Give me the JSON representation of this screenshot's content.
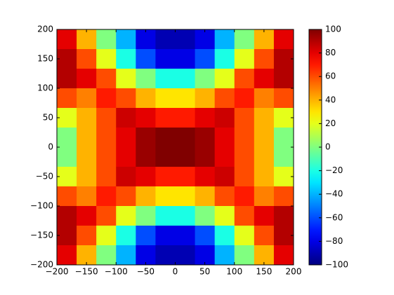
{
  "chart_data": {
    "type": "heatmap",
    "z": [
      [
        80,
        40,
        0,
        -40,
        -80,
        -90,
        -90,
        -80,
        -40,
        0,
        40,
        80
      ],
      [
        90,
        60,
        20,
        -20,
        -60,
        -80,
        -80,
        -60,
        -20,
        20,
        60,
        90
      ],
      [
        90,
        80,
        60,
        20,
        0,
        -20,
        -20,
        0,
        20,
        60,
        80,
        90
      ],
      [
        60,
        50,
        70,
        60,
        40,
        30,
        30,
        40,
        60,
        70,
        50,
        60
      ],
      [
        20,
        40,
        60,
        85,
        80,
        70,
        70,
        80,
        85,
        60,
        40,
        20
      ],
      [
        0,
        40,
        60,
        80,
        95,
        100,
        100,
        95,
        80,
        60,
        40,
        0
      ],
      [
        0,
        40,
        60,
        80,
        95,
        100,
        100,
        95,
        80,
        60,
        40,
        0
      ],
      [
        20,
        40,
        60,
        85,
        80,
        70,
        70,
        80,
        85,
        60,
        40,
        20
      ],
      [
        60,
        50,
        70,
        60,
        40,
        30,
        30,
        40,
        60,
        70,
        50,
        60
      ],
      [
        90,
        80,
        60,
        20,
        0,
        -20,
        -20,
        0,
        20,
        60,
        80,
        90
      ],
      [
        90,
        60,
        20,
        -20,
        -60,
        -80,
        -80,
        -60,
        -20,
        20,
        60,
        90
      ],
      [
        80,
        40,
        0,
        -40,
        -80,
        -90,
        -90,
        -80,
        -40,
        0,
        40,
        80
      ]
    ],
    "colormap": "jet",
    "xlim": [
      -200,
      200
    ],
    "ylim": [
      -200,
      200
    ],
    "xticks": [
      {
        "value": -200,
        "label": "−200"
      },
      {
        "value": -150,
        "label": "−150"
      },
      {
        "value": -100,
        "label": "−100"
      },
      {
        "value": -50,
        "label": "−50"
      },
      0,
      50,
      100,
      150,
      200
    ],
    "yticks": [
      {
        "value": -200,
        "label": "−200"
      },
      {
        "value": -150,
        "label": "−150"
      },
      {
        "value": -100,
        "label": "−100"
      },
      {
        "value": -50,
        "label": "−50"
      },
      0,
      50,
      100,
      150,
      200
    ],
    "clim": [
      -100,
      100
    ],
    "cticks": [
      {
        "value": -100,
        "label": "−100"
      },
      {
        "value": -80,
        "label": "−80"
      },
      {
        "value": -60,
        "label": "−60"
      },
      {
        "value": -40,
        "label": "−40"
      },
      {
        "value": -20,
        "label": "−20"
      },
      0,
      20,
      40,
      60,
      80,
      100
    ]
  }
}
